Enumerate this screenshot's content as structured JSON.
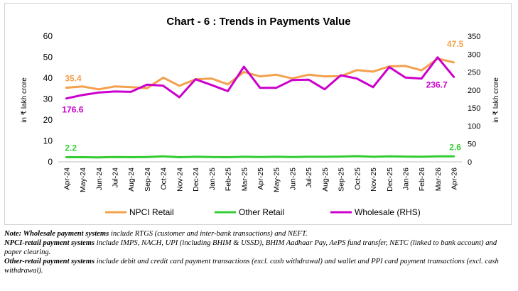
{
  "chart_data": {
    "type": "line",
    "title": "Chart - 6 : Trends in Payments Value",
    "ylabel_left": "in ₹ lakh crore",
    "ylabel_right": "in ₹ lakh crore",
    "ylim_left": [
      0,
      60
    ],
    "ylim_right": [
      0,
      350
    ],
    "yticks_left": [
      0,
      10,
      20,
      30,
      40,
      50,
      60
    ],
    "yticks_right": [
      0,
      50,
      100,
      150,
      200,
      250,
      300,
      350
    ],
    "categories": [
      "Apr-24",
      "May-24",
      "Jun-24",
      "Jul-24",
      "Aug-24",
      "Sep-24",
      "Oct-24",
      "Nov-24",
      "Dec-24",
      "Jan-25",
      "Feb-25",
      "Mar-25",
      "Apr-25",
      "May-25",
      "Jun-25",
      "Jul-25",
      "Aug-25",
      "Sep-25",
      "Oct-25",
      "Nov-25",
      "Dec-25",
      "Jan-26",
      "Feb-26",
      "Mar-26",
      "Apr-26"
    ],
    "series": [
      {
        "name": "NPCI Retail",
        "axis": "left",
        "color": "#f4a04d",
        "values": [
          35.4,
          36.0,
          34.6,
          36.0,
          35.7,
          35.2,
          40.2,
          36.3,
          39.4,
          39.8,
          37.0,
          42.9,
          40.8,
          41.6,
          39.8,
          41.6,
          40.8,
          40.9,
          43.8,
          43.1,
          45.6,
          45.8,
          43.7,
          49.3,
          47.5
        ]
      },
      {
        "name": "Other Retail",
        "axis": "left",
        "color": "#33cc33",
        "values": [
          2.2,
          2.2,
          2.1,
          2.3,
          2.2,
          2.3,
          2.6,
          2.2,
          2.4,
          2.3,
          2.2,
          2.4,
          2.3,
          2.4,
          2.3,
          2.4,
          2.4,
          2.5,
          2.7,
          2.4,
          2.6,
          2.5,
          2.4,
          2.6,
          2.6
        ]
      },
      {
        "name": "Wholesale (RHS)",
        "axis": "right",
        "color": "#cc00cc",
        "values": [
          176.6,
          186,
          193,
          196,
          195,
          215,
          212,
          180,
          230,
          214,
          197,
          265,
          206,
          206,
          228,
          229,
          202,
          241,
          232,
          208,
          264,
          235,
          232,
          291,
          236.7
        ]
      }
    ],
    "annotations": {
      "npci_first": "35.4",
      "npci_last": "47.5",
      "other_first": "2.2",
      "other_last": "2.6",
      "wholesale_first": "176.6",
      "wholesale_last": "236.7"
    },
    "legend": [
      "NPCI Retail",
      "Other Retail",
      "Wholesale (RHS)"
    ],
    "legend_position": "bottom",
    "grid": false
  },
  "notes": {
    "line1_bold": "Note: Wholesale payment systems",
    "line1_rest": " include RTGS (customer and inter-bank transactions) and NEFT.",
    "line2_bold": "NPCI-retail payment systems",
    "line2_rest": " include IMPS, NACH, UPI (including BHIM & USSD), BHIM Aadhaar Pay, AePS fund transfer, NETC (linked to bank account) and paper clearing.",
    "line3_bold": "Other-retail payment systems",
    "line3_rest": " include debit and credit card payment transactions (excl. cash withdrawal) and wallet and PPI card payment transactions (excl. cash withdrawal)."
  }
}
